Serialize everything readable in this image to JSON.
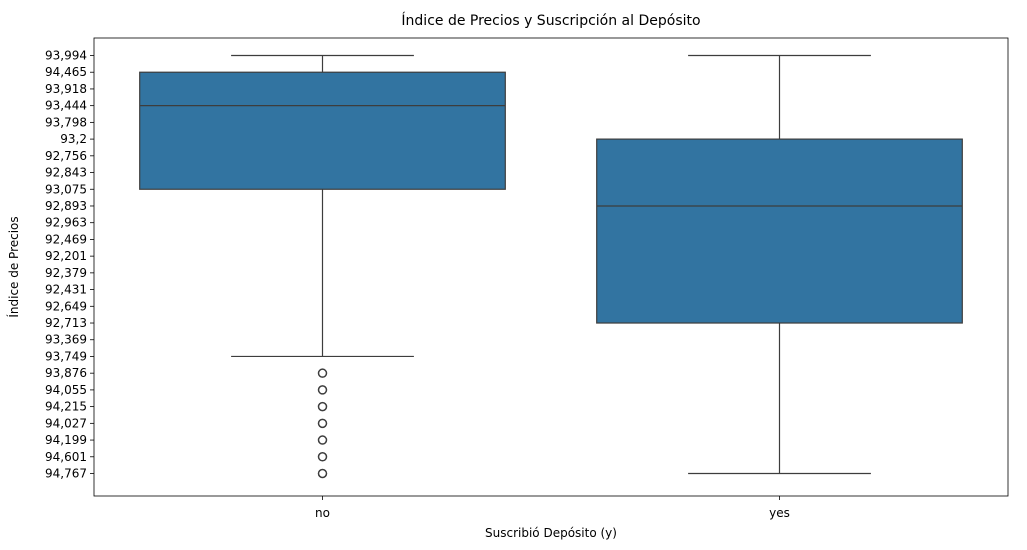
{
  "chart_data": {
    "type": "boxplot",
    "title": "Índice de Precios y Suscripción al Depósito",
    "xlabel": "Suscribió Depósito (y)",
    "ylabel": "Índice de Precios",
    "y_categories": [
      "93,994",
      "94,465",
      "93,918",
      "93,444",
      "93,798",
      "93,2",
      "92,756",
      "92,843",
      "93,075",
      "92,893",
      "92,963",
      "92,469",
      "92,201",
      "92,379",
      "92,431",
      "92,649",
      "92,713",
      "93,369",
      "93,749",
      "93,876",
      "94,055",
      "94,215",
      "94,027",
      "94,199",
      "94,601",
      "94,767"
    ],
    "categories": [
      "no",
      "yes"
    ],
    "boxes": [
      {
        "category": "no",
        "whisker_low": "93,994",
        "q1": "94,465",
        "median": "93,444",
        "q3": "93,075",
        "whisker_high": "93,749",
        "outliers": [
          "93,876",
          "94,055",
          "94,215",
          "94,027",
          "94,199",
          "94,601",
          "94,767"
        ]
      },
      {
        "category": "yes",
        "whisker_low": "93,994",
        "q1": "93,2",
        "median": "92,893",
        "q3": "92,713",
        "whisker_high": "94,767",
        "outliers": []
      }
    ],
    "box_color": "#3274a1",
    "line_color": "#3d3d3d",
    "grid": false
  }
}
